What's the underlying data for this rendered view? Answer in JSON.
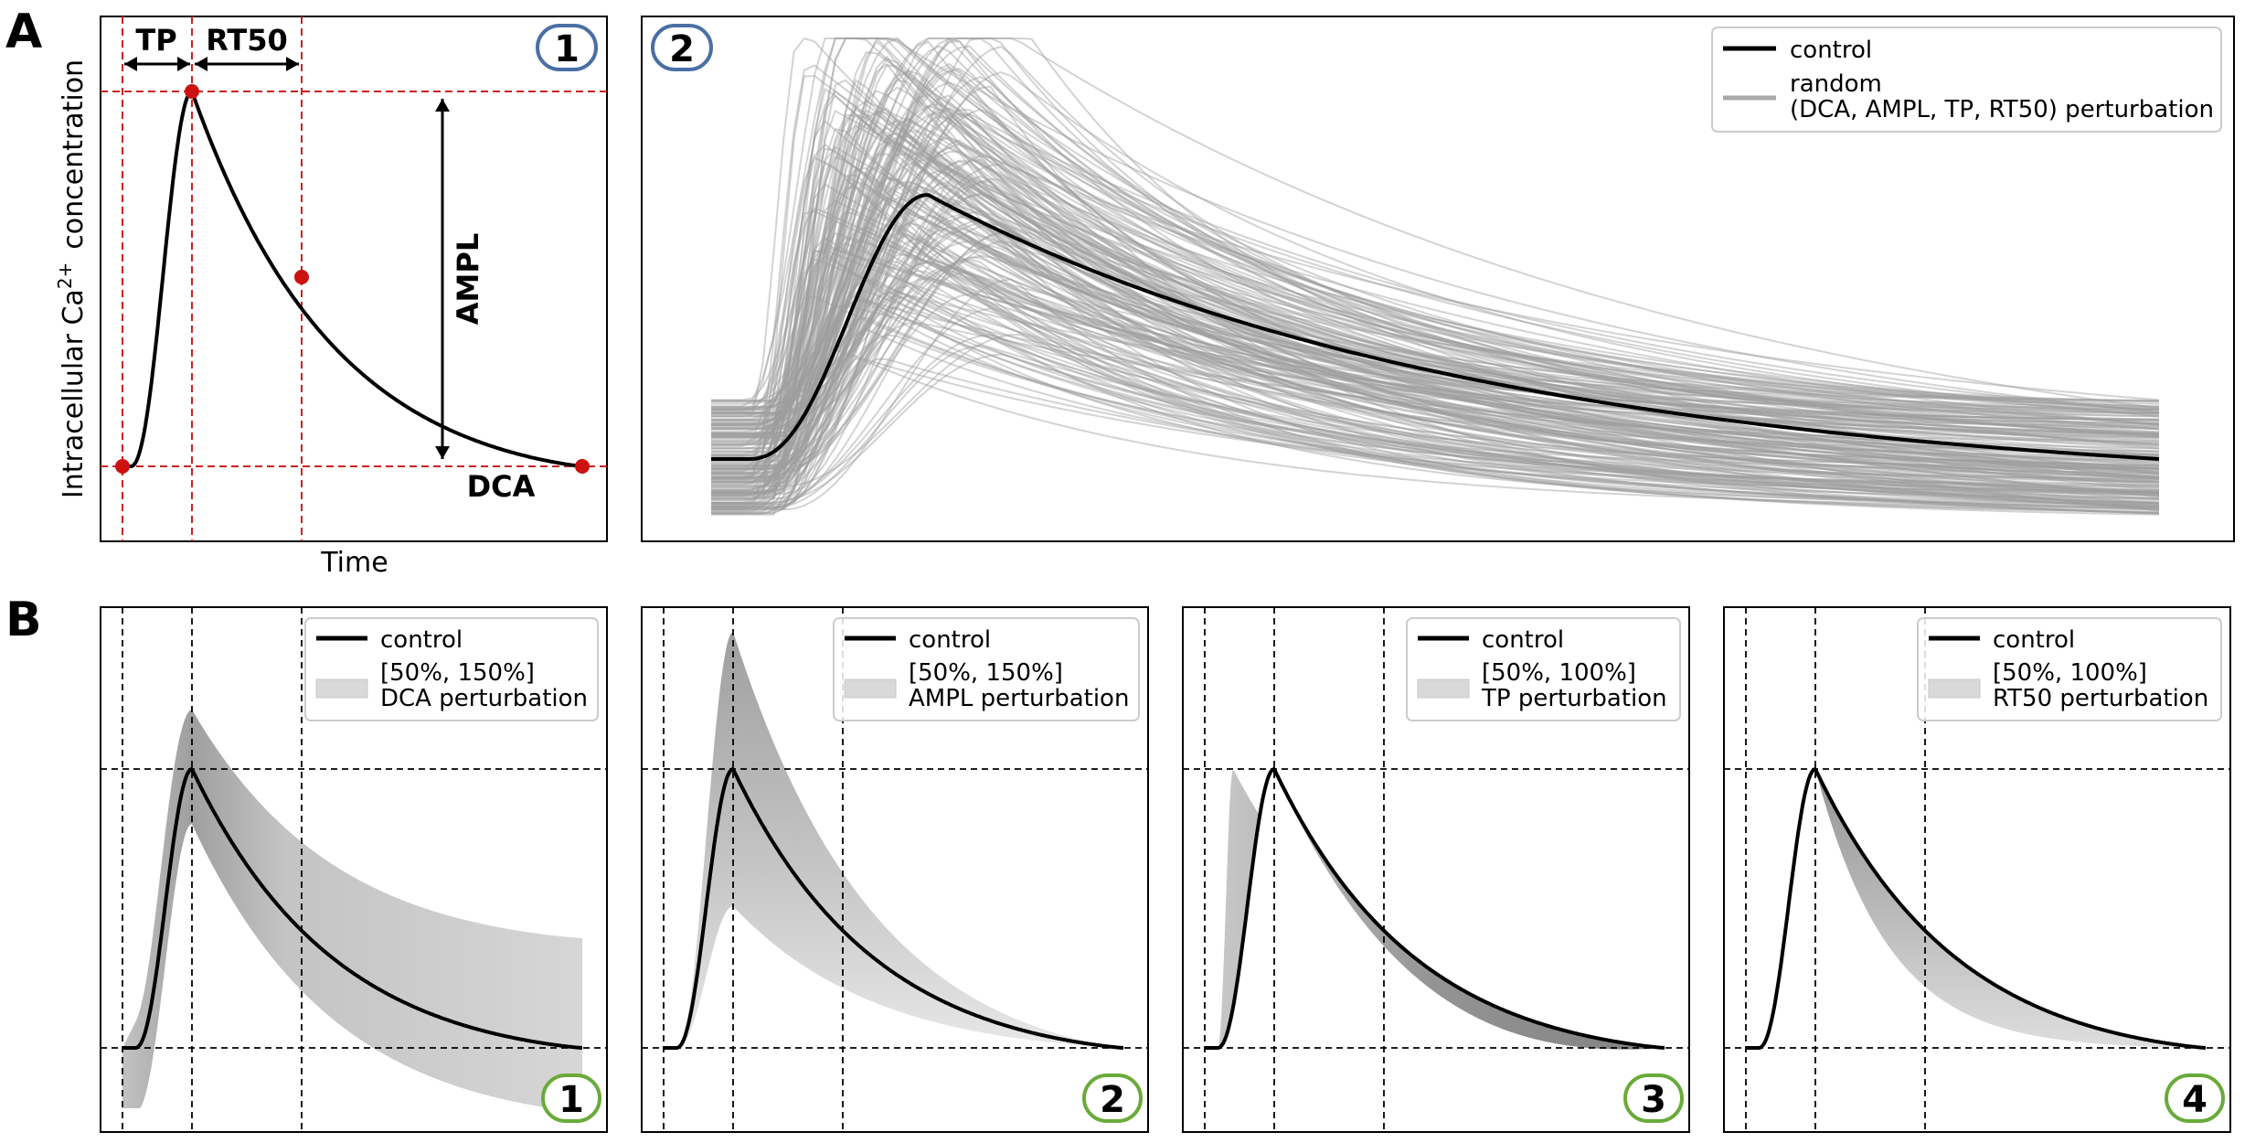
{
  "figure": {
    "panel_labels": [
      "A",
      "B"
    ],
    "badge_colors": {
      "A": "#4a6fa5",
      "B": "#6aaa3a"
    }
  },
  "chart_data": [
    {
      "id": "A1",
      "type": "line",
      "badge": "1",
      "xlabel": "Time",
      "ylabel": "Intracellular Ca",
      "ylabel_sup": "2+",
      "ylabel_rest": "concentration",
      "annotations": [
        "TP",
        "RT50",
        "AMPL",
        "DCA"
      ],
      "markers": [
        "onset",
        "peak",
        "half-decay",
        "end"
      ],
      "series": [
        {
          "values_shape": "calcium-transient"
        }
      ]
    },
    {
      "id": "A2",
      "type": "line",
      "badge": "2",
      "legend": [
        {
          "label": "control",
          "color": "#000000"
        },
        {
          "label": "random",
          "label2": "(DCA, AMPL, TP, RT50) perturbation",
          "color": "#aaaaaa"
        }
      ],
      "n_random_traces": 200
    },
    {
      "id": "B1",
      "type": "area",
      "badge": "1",
      "legend": [
        {
          "label": "control"
        },
        {
          "label": "[50%, 150%]",
          "label2": "DCA perturbation"
        }
      ]
    },
    {
      "id": "B2",
      "type": "area",
      "badge": "2",
      "legend": [
        {
          "label": "control"
        },
        {
          "label": "[50%, 150%]",
          "label2": "AMPL perturbation"
        }
      ]
    },
    {
      "id": "B3",
      "type": "area",
      "badge": "3",
      "legend": [
        {
          "label": "control"
        },
        {
          "label": "[50%, 100%]",
          "label2": "TP perturbation"
        }
      ]
    },
    {
      "id": "B4",
      "type": "area",
      "badge": "4",
      "legend": [
        {
          "label": "control"
        },
        {
          "label": "[50%, 100%]",
          "label2": "RT50 perturbation"
        }
      ]
    }
  ]
}
